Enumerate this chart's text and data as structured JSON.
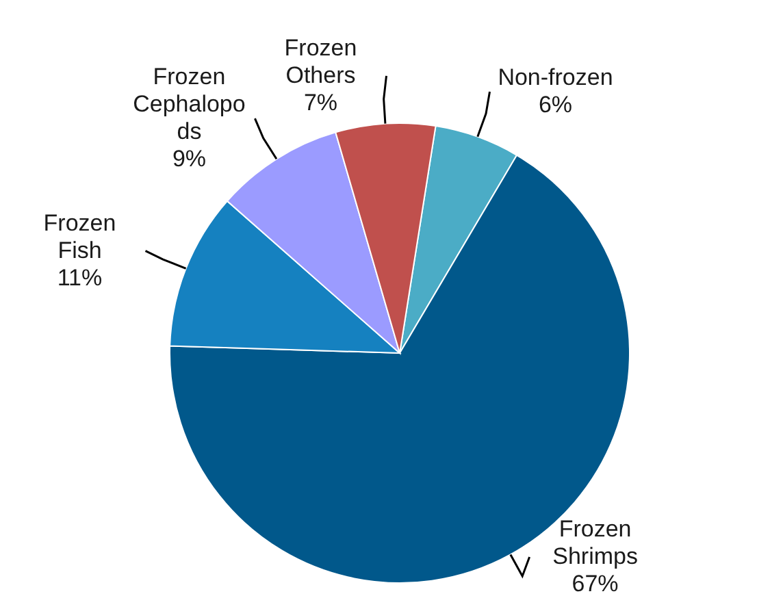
{
  "chart_data": {
    "type": "pie",
    "categories": [
      "Non-frozen",
      "Frozen\nShrimps",
      "Frozen\nFish",
      "Frozen\nCephalopo\nds",
      "Frozen\nOthers"
    ],
    "values": [
      6,
      67,
      11,
      9,
      7
    ],
    "colors": [
      "#4bacc6",
      "#01588b",
      "#1581c0",
      "#9b9bff",
      "#c0504d"
    ],
    "value_labels": [
      "6%",
      "67%",
      "11%",
      "9%",
      "7%"
    ]
  }
}
